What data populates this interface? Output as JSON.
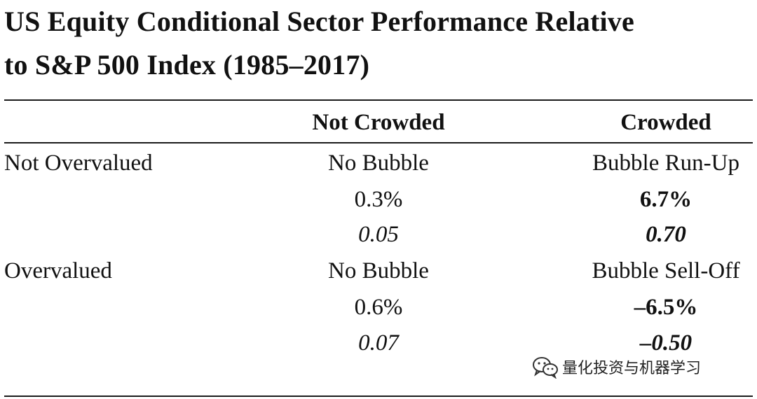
{
  "title": {
    "line1": "US Equity Conditional Sector Performance Relative",
    "line2": "to S&P 500 Index (1985–2017)"
  },
  "table": {
    "col_headers": [
      "Not Crowded",
      "Crowded"
    ],
    "rows": [
      {
        "label": "Not Overvalued",
        "not_crowded": {
          "name": "No Bubble",
          "return": "0.3%",
          "stat": "0.05"
        },
        "crowded": {
          "name": "Bubble Run-Up",
          "return": "6.7%",
          "stat": "0.70"
        }
      },
      {
        "label": "Overvalued",
        "not_crowded": {
          "name": "No Bubble",
          "return": "0.6%",
          "stat": "0.07"
        },
        "crowded": {
          "name": "Bubble Sell-Off",
          "return": "–6.5%",
          "stat": "–0.50"
        }
      }
    ]
  },
  "watermark": {
    "text": "量化投资与机器学习",
    "icon": "wechat-icon"
  }
}
